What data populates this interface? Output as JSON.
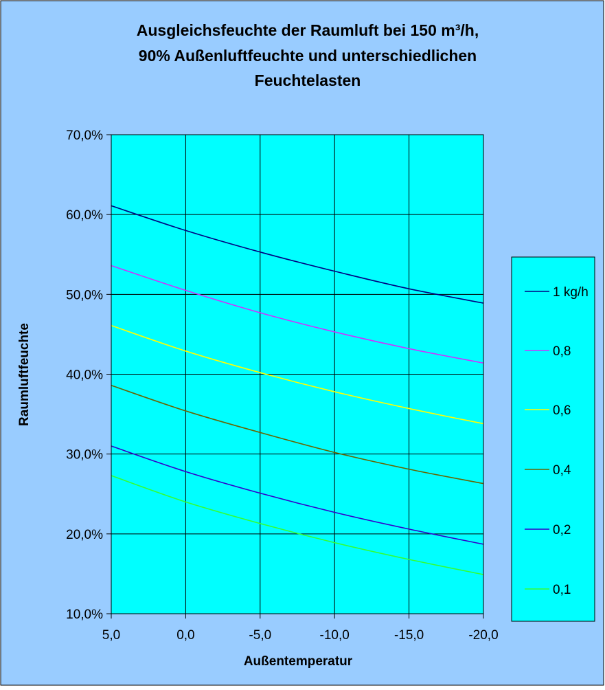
{
  "chart_data": {
    "type": "line",
    "title": [
      "Ausgleichsfeuchte der Raumluft bei 150 m³/h,",
      "90% Außenluftfeuchte und unterschiedlichen",
      "Feuchtelasten"
    ],
    "xlabel": "Außentemperatur",
    "ylabel": "Raumluftfeuchte",
    "x_ticks": [
      "5,0",
      "0,0",
      "-5,0",
      "-10,0",
      "-15,0",
      "-20,0"
    ],
    "x_values": [
      5,
      0,
      -5,
      -10,
      -15,
      -20
    ],
    "xlim": [
      5,
      -20
    ],
    "y_ticks": [
      "70,0%",
      "60,0%",
      "50,0%",
      "40,0%",
      "30,0%",
      "20,0%",
      "10,0%"
    ],
    "ylim": [
      10,
      70
    ],
    "grid": true,
    "legend_position": "right",
    "series": [
      {
        "name": "1 kg/h",
        "color": "#000080",
        "values": [
          61.1,
          58.0,
          55.3,
          52.9,
          50.7,
          48.9
        ]
      },
      {
        "name": "0,8",
        "color": "#cc33ff",
        "values": [
          53.6,
          50.5,
          47.7,
          45.3,
          43.2,
          41.4
        ]
      },
      {
        "name": "0,6",
        "color": "#ffff00",
        "values": [
          46.1,
          42.9,
          40.2,
          37.8,
          35.7,
          33.8
        ]
      },
      {
        "name": "0,4",
        "color": "#666600",
        "values": [
          38.6,
          35.4,
          32.7,
          30.2,
          28.1,
          26.3
        ]
      },
      {
        "name": "0,2",
        "color": "#3300cc",
        "values": [
          31.0,
          27.8,
          25.1,
          22.7,
          20.6,
          18.7
        ]
      },
      {
        "name": "0,1",
        "color": "#33ff33",
        "values": [
          27.3,
          24.0,
          21.3,
          18.9,
          16.8,
          14.9
        ]
      }
    ],
    "colors": {
      "chart_area": "#99ccff",
      "plot_area": "#00ffff",
      "legend_background": "#00ffff",
      "grid": "#000000"
    }
  }
}
